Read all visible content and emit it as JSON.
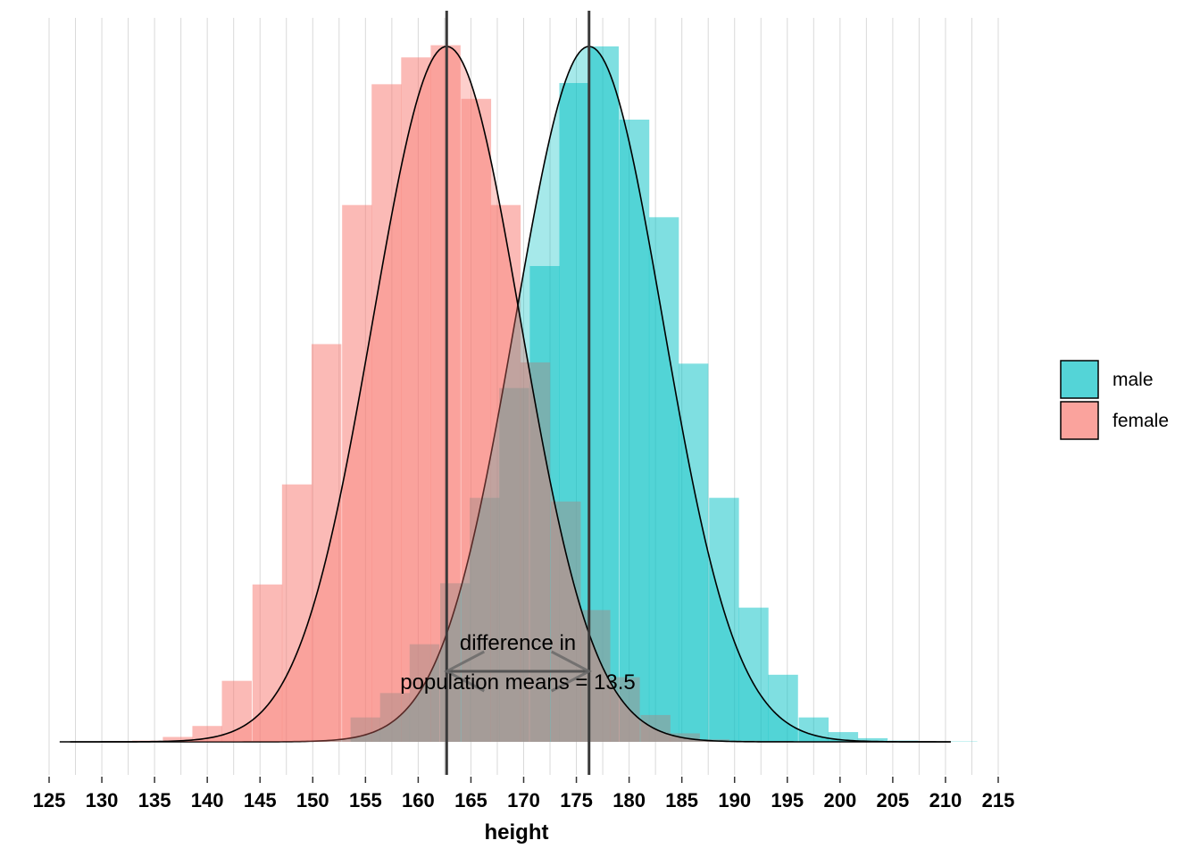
{
  "chart_data": {
    "type": "histogram-density",
    "xlabel": "height",
    "xlim": [
      126,
      212.5
    ],
    "xticks": [
      125,
      130,
      135,
      140,
      145,
      150,
      155,
      160,
      165,
      170,
      175,
      180,
      185,
      190,
      195,
      200,
      205,
      210,
      215
    ],
    "grid": "vertical",
    "legend_position": "right",
    "bin_width": 2.83,
    "series": [
      {
        "name": "male",
        "color": "#00BFC4",
        "mean": 176.2,
        "sd": 7.0,
        "bins": [
          {
            "x": 155.0,
            "h": 0.002
          },
          {
            "x": 157.8,
            "h": 0.004
          },
          {
            "x": 160.6,
            "h": 0.008
          },
          {
            "x": 163.5,
            "h": 0.013
          },
          {
            "x": 166.3,
            "h": 0.02
          },
          {
            "x": 169.1,
            "h": 0.029
          },
          {
            "x": 172.0,
            "h": 0.039
          },
          {
            "x": 174.8,
            "h": 0.054
          },
          {
            "x": 177.6,
            "h": 0.057
          },
          {
            "x": 180.5,
            "h": 0.051
          },
          {
            "x": 183.3,
            "h": 0.043
          },
          {
            "x": 186.1,
            "h": 0.031
          },
          {
            "x": 189.0,
            "h": 0.02
          },
          {
            "x": 191.8,
            "h": 0.011
          },
          {
            "x": 194.6,
            "h": 0.0055
          },
          {
            "x": 197.5,
            "h": 0.002
          },
          {
            "x": 200.3,
            "h": 0.0008
          },
          {
            "x": 203.1,
            "h": 0.0003
          },
          {
            "x": 206.0,
            "h": 0.0001
          },
          {
            "x": 208.8,
            "h": 5e-05
          },
          {
            "x": 211.6,
            "h": 3e-05
          }
        ]
      },
      {
        "name": "female",
        "color": "#F8766D",
        "mean": 162.7,
        "sd": 7.0,
        "bins": [
          {
            "x": 128.7,
            "h": 3e-05
          },
          {
            "x": 131.5,
            "h": 5e-05
          },
          {
            "x": 134.3,
            "h": 0.0001
          },
          {
            "x": 137.2,
            "h": 0.0004
          },
          {
            "x": 140.0,
            "h": 0.0013
          },
          {
            "x": 142.8,
            "h": 0.005
          },
          {
            "x": 145.7,
            "h": 0.0129
          },
          {
            "x": 148.5,
            "h": 0.0211
          },
          {
            "x": 151.3,
            "h": 0.0326
          },
          {
            "x": 154.2,
            "h": 0.044
          },
          {
            "x": 157.0,
            "h": 0.0539
          },
          {
            "x": 159.8,
            "h": 0.0561
          },
          {
            "x": 162.6,
            "h": 0.0571
          },
          {
            "x": 165.5,
            "h": 0.0527
          },
          {
            "x": 168.3,
            "h": 0.044
          },
          {
            "x": 171.1,
            "h": 0.0311
          },
          {
            "x": 174.0,
            "h": 0.0197
          },
          {
            "x": 176.8,
            "h": 0.0108
          },
          {
            "x": 179.6,
            "h": 0.0053
          },
          {
            "x": 182.5,
            "h": 0.0022
          },
          {
            "x": 185.3,
            "h": 0.0007
          },
          {
            "x": 188.1,
            "h": 0.0002
          },
          {
            "x": 191.0,
            "h": 0.0001
          }
        ]
      }
    ],
    "annotations": {
      "line1": "difference in",
      "line2": "population means = 13.5"
    }
  }
}
